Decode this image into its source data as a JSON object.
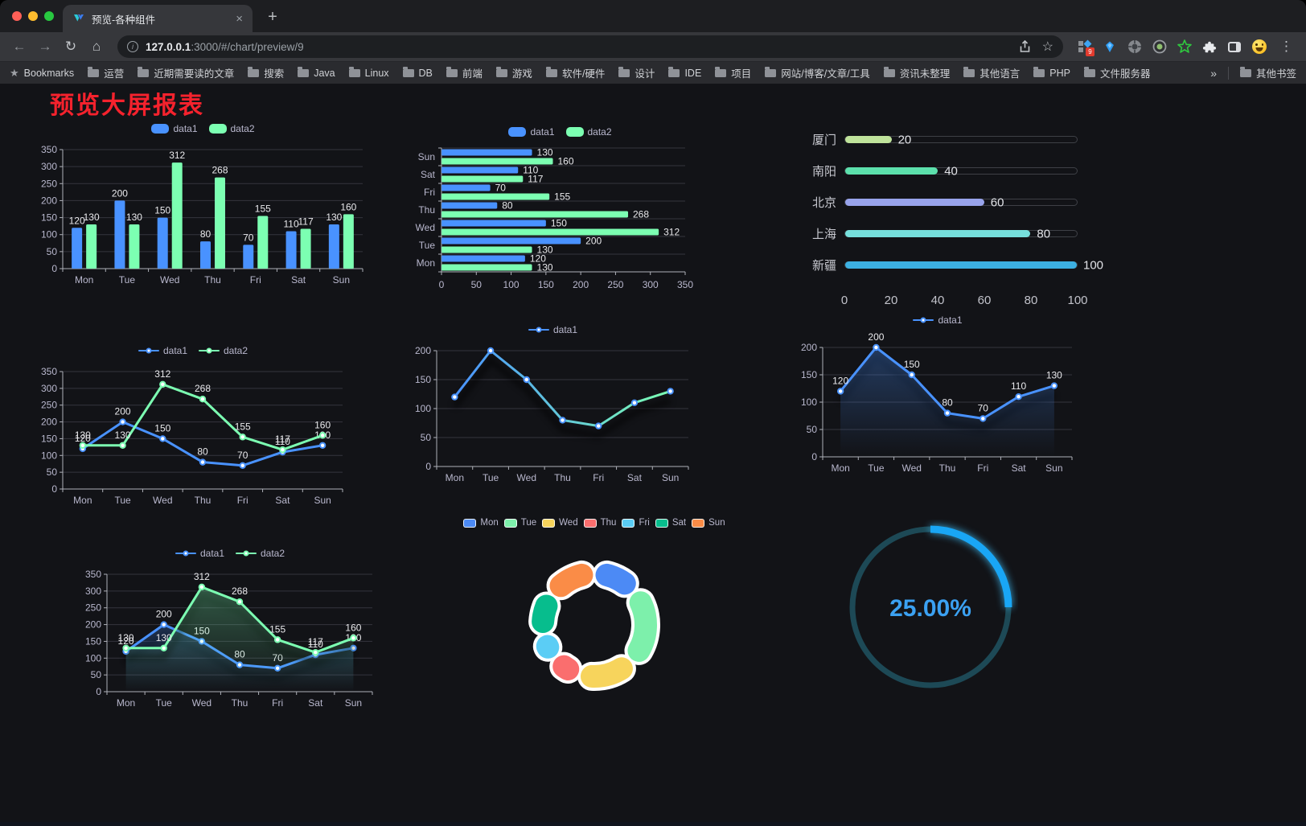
{
  "window": {
    "controls": [
      "close",
      "minimize",
      "maximize"
    ]
  },
  "browser": {
    "tab": {
      "title": "预览-各种组件",
      "close_glyph": "×",
      "new_tab_glyph": "+"
    },
    "toolbar": {
      "back_glyph": "←",
      "forward_glyph": "→",
      "reload_glyph": "↻",
      "home_glyph": "⌂",
      "info_glyph": "i",
      "url_host": "127.0.0.1",
      "url_rest": ":3000/#/chart/preview/9",
      "star_glyph": "☆",
      "menu_glyph": "⋮",
      "extension_badge": "9"
    },
    "bookmarks_bar": {
      "root_icon": "★",
      "root_label": "Bookmarks",
      "folders": [
        "运营",
        "近期需要读的文章",
        "搜索",
        "Java",
        "Linux",
        "DB",
        "前端",
        "游戏",
        "软件/硬件",
        "设计",
        "IDE",
        "项目",
        "网站/博客/文章/工具",
        "资讯未整理",
        "其他语言",
        "PHP",
        "文件服务器"
      ],
      "overflow_glyph": "»",
      "other_bookmarks": "其他书签"
    }
  },
  "page": {
    "title": "预览大屏报表"
  },
  "theme": {
    "page_bg": "#121317",
    "title_color": "#f5222d",
    "text_color": "#b9b8ce",
    "grid_color": "#34343e",
    "axis_color": "#aeb0b8",
    "data_label_color": "#e9e9ec"
  },
  "chart_data": [
    {
      "id": "bar-grouped",
      "dom": "c1",
      "type": "bar",
      "categories": [
        "Mon",
        "Tue",
        "Wed",
        "Thu",
        "Fri",
        "Sat",
        "Sun"
      ],
      "series": [
        {
          "name": "data1",
          "color": "#4992ff",
          "values": [
            120,
            200,
            150,
            80,
            70,
            110,
            130
          ]
        },
        {
          "name": "data2",
          "color": "#7cffb2",
          "values": [
            130,
            130,
            312,
            268,
            155,
            117,
            160
          ]
        }
      ],
      "ylim": [
        0,
        350
      ],
      "yticks": [
        0,
        50,
        100,
        150,
        200,
        250,
        300,
        350
      ],
      "data_labels": true,
      "legend_position": "top",
      "grid": true
    },
    {
      "id": "bar-horizontal",
      "dom": "c2",
      "type": "bar",
      "orientation": "horizontal",
      "categories": [
        "Sun",
        "Sat",
        "Fri",
        "Thu",
        "Wed",
        "Tue",
        "Mon"
      ],
      "series": [
        {
          "name": "data1",
          "color": "#4992ff",
          "values": [
            130,
            110,
            70,
            80,
            150,
            200,
            120
          ]
        },
        {
          "name": "data2",
          "color": "#7cffb2",
          "values": [
            160,
            117,
            155,
            268,
            312,
            130,
            130
          ]
        }
      ],
      "xlim": [
        0,
        350
      ],
      "xticks": [
        0,
        50,
        100,
        150,
        200,
        250,
        300,
        350
      ],
      "data_labels": true,
      "legend_position": "top"
    },
    {
      "id": "progress-list",
      "dom": "c3",
      "type": "progress",
      "items": [
        {
          "label": "厦门",
          "value": 20,
          "color": "#bfe39b"
        },
        {
          "label": "南阳",
          "value": 40,
          "color": "#5ce0ac"
        },
        {
          "label": "北京",
          "value": 60,
          "color": "#98a3eb"
        },
        {
          "label": "上海",
          "value": 80,
          "color": "#76dfdc"
        },
        {
          "label": "新疆",
          "value": 100,
          "color": "#3cb0e2"
        }
      ],
      "xlim": [
        0,
        100
      ],
      "xticks": [
        0,
        20,
        40,
        60,
        80,
        100
      ]
    },
    {
      "id": "line-dual",
      "dom": "c4",
      "type": "line",
      "categories": [
        "Mon",
        "Tue",
        "Wed",
        "Thu",
        "Fri",
        "Sat",
        "Sun"
      ],
      "series": [
        {
          "name": "data1",
          "color": "#4992ff",
          "values": [
            120,
            200,
            150,
            80,
            70,
            110,
            130
          ]
        },
        {
          "name": "data2",
          "color": "#7cffb2",
          "values": [
            130,
            130,
            312,
            268,
            155,
            117,
            160
          ]
        }
      ],
      "ylim": [
        0,
        350
      ],
      "yticks": [
        0,
        50,
        100,
        150,
        200,
        250,
        300,
        350
      ],
      "data_labels": true,
      "legend_position": "top"
    },
    {
      "id": "line-gradient",
      "dom": "c5",
      "type": "line",
      "categories": [
        "Mon",
        "Tue",
        "Wed",
        "Thu",
        "Fri",
        "Sat",
        "Sun"
      ],
      "series": [
        {
          "name": "data1",
          "gradient": [
            "#4992ff",
            "#7cffb2"
          ],
          "marker_color": "#4992ff",
          "values": [
            120,
            200,
            150,
            80,
            70,
            110,
            130
          ]
        }
      ],
      "ylim": [
        0,
        200
      ],
      "yticks": [
        0,
        50,
        100,
        150,
        200
      ],
      "data_labels": false,
      "shadow": true,
      "legend_position": "top"
    },
    {
      "id": "area-single",
      "dom": "c6",
      "type": "line",
      "categories": [
        "Mon",
        "Tue",
        "Wed",
        "Thu",
        "Fri",
        "Sat",
        "Sun"
      ],
      "series": [
        {
          "name": "data1",
          "color": "#4992ff",
          "area": true,
          "area_opacity": 0.32,
          "values": [
            120,
            200,
            150,
            80,
            70,
            110,
            130
          ]
        }
      ],
      "ylim": [
        0,
        200
      ],
      "yticks": [
        0,
        50,
        100,
        150,
        200
      ],
      "data_labels": true,
      "shadow": true,
      "legend_position": "top",
      "padT": 22
    },
    {
      "id": "area-dual",
      "dom": "c7",
      "type": "line",
      "categories": [
        "Mon",
        "Tue",
        "Wed",
        "Thu",
        "Fri",
        "Sat",
        "Sun"
      ],
      "series": [
        {
          "name": "data1",
          "color": "#4992ff",
          "area": true,
          "area_opacity": 0.25,
          "values": [
            120,
            200,
            150,
            80,
            70,
            110,
            130
          ]
        },
        {
          "name": "data2",
          "color": "#7cffb2",
          "area": true,
          "area_opacity": 0.3,
          "values": [
            130,
            130,
            312,
            268,
            155,
            117,
            160
          ]
        }
      ],
      "ylim": [
        0,
        350
      ],
      "yticks": [
        0,
        50,
        100,
        150,
        200,
        250,
        300,
        350
      ],
      "data_labels": true,
      "shadow": true,
      "legend_position": "top"
    },
    {
      "id": "donut",
      "dom": "c8",
      "type": "pie",
      "inner_ratio": 0.6,
      "categories": [
        "Mon",
        "Tue",
        "Wed",
        "Thu",
        "Fri",
        "Sat",
        "Sun"
      ],
      "values": [
        120,
        200,
        150,
        80,
        70,
        110,
        130
      ],
      "colors": [
        "#4c8af5",
        "#7df0ab",
        "#f7d45c",
        "#fa6e6e",
        "#5bcdf5",
        "#07bd8d",
        "#fa8c47"
      ],
      "legend_position": "top"
    },
    {
      "id": "gauge",
      "dom": "c9",
      "type": "gauge",
      "percent": 25,
      "value_label": "25.00%",
      "progress_color": "#19a6f5",
      "track_color": "#1d4956",
      "text_color": "#3ba1f2"
    }
  ]
}
